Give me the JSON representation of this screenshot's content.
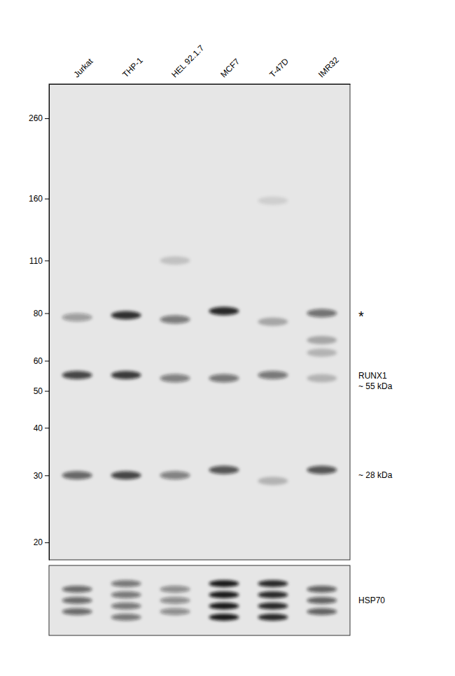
{
  "chart_data": [
    {
      "type": "blot",
      "categories": [
        "Jurkat",
        "THP-1",
        "HEL 92.1.7",
        "MCF7",
        "T-47D",
        "IMR32"
      ],
      "x": [
        "Jurkat",
        "THP-1",
        "HEL 92.1.7",
        "MCF7",
        "T-47D",
        "IMR32",
        "Jurkat",
        "THP-1",
        "HEL 92.1.7",
        "MCF7",
        "T-47D",
        "IMR32",
        "Jurkat",
        "THP-1",
        "HEL 92.1.7",
        "MCF7",
        "T-47D",
        "IMR32",
        "HEL 92.1.7",
        "T-47D",
        "IMR32",
        "IMR32"
      ],
      "y": [
        78,
        79,
        77,
        81,
        76,
        80,
        55,
        55,
        54,
        54,
        55,
        54,
        30,
        30,
        30,
        31,
        29,
        31,
        110,
        158,
        68,
        63
      ],
      "intensity": [
        0.35,
        0.85,
        0.5,
        0.88,
        0.28,
        0.55,
        0.75,
        0.8,
        0.48,
        0.52,
        0.52,
        0.22,
        0.6,
        0.75,
        0.48,
        0.68,
        0.22,
        0.68,
        0.16,
        0.1,
        0.28,
        0.22
      ],
      "log": "y",
      "ylim": [
        18,
        320
      ],
      "yticks": [
        260,
        160,
        110,
        80,
        60,
        50,
        40,
        30,
        20
      ],
      "annotations": [
        {
          "text": "*",
          "y": 79
        },
        {
          "text": "RUNX1\n~ 55 kDa",
          "y": 53
        },
        {
          "text": "~ 28 kDa",
          "y": 30
        }
      ]
    },
    {
      "type": "blot",
      "x": [
        "Jurkat",
        "THP-1",
        "HEL 92.1.7",
        "MCF7",
        "T-47D",
        "IMR32"
      ],
      "intensity": [
        0.58,
        0.52,
        0.42,
        0.95,
        0.88,
        0.62
      ],
      "stripes": [
        3,
        4,
        3,
        4,
        4,
        3
      ],
      "tick_labels": false,
      "annotations": [
        {
          "text": "HSP70"
        }
      ]
    }
  ]
}
